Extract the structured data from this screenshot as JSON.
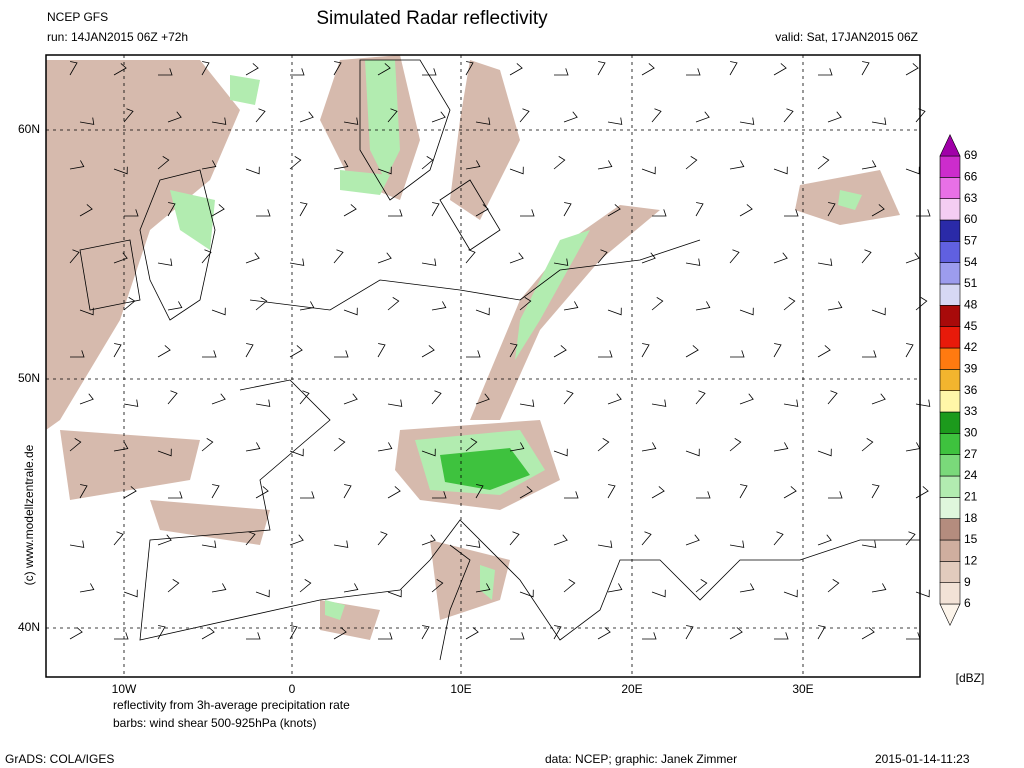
{
  "header": {
    "model": "NCEP GFS",
    "title": "Simulated Radar reflectivity",
    "run": "run: 14JAN2015 06Z +72h",
    "valid": "valid: Sat, 17JAN2015 06Z"
  },
  "map": {
    "lat_labels": [
      "60N",
      "50N",
      "40N"
    ],
    "lon_labels": [
      "10W",
      "0",
      "10E",
      "20E",
      "30E"
    ],
    "credit": "(c) www.modellzentrale.de",
    "notes": [
      "reflectivity from 3h-average precipitation rate",
      "barbs: wind shear 500-925hPa (knots)"
    ]
  },
  "colorbar": {
    "unit": "[dBZ]",
    "levels": [
      6,
      9,
      12,
      15,
      18,
      21,
      24,
      27,
      30,
      33,
      36,
      39,
      42,
      45,
      48,
      51,
      54,
      57,
      60,
      63,
      66,
      69
    ],
    "colors": [
      "#fcf4ea",
      "#f2e2d6",
      "#e2cbbd",
      "#cfae9f",
      "#b48c7e",
      "#dff7dc",
      "#b2ecb0",
      "#7ad97a",
      "#3ec23e",
      "#1c9a1c",
      "#fff7a8",
      "#f2b52e",
      "#ff7a10",
      "#e81a0a",
      "#a80a0a",
      "#d6d8f4",
      "#9c9cee",
      "#6060e0",
      "#2a2aa8",
      "#f4cdf2",
      "#e870e6",
      "#cc2ccc",
      "#a000a8"
    ]
  },
  "footer": {
    "software": "GrADS: COLA/IGES",
    "source": "data: NCEP; graphic: Janek Zimmer",
    "timestamp": "2015-01-14-11:23"
  }
}
